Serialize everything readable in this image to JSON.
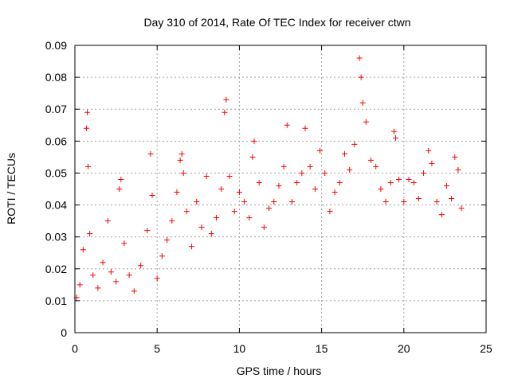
{
  "chart_data": {
    "type": "scatter",
    "title": "Day 310 of 2014, Rate Of TEC Index for receiver ctwn",
    "xlabel": "GPS time / hours",
    "ylabel": "ROTI / TECUs",
    "xlim": [
      0,
      25
    ],
    "ylim": [
      0,
      0.09
    ],
    "x_ticks": [
      "0",
      "5",
      "10",
      "15",
      "20",
      "25"
    ],
    "y_ticks": [
      "0",
      "0.01",
      "0.02",
      "0.03",
      "0.04",
      "0.05",
      "0.06",
      "0.07",
      "0.08",
      "0.09"
    ],
    "grid": true,
    "marker": "+",
    "color": "#ff0000",
    "series": [
      {
        "x": [
          0.1,
          0.3,
          0.5,
          0.7,
          0.75,
          0.8,
          0.9,
          1.1,
          1.4,
          1.7,
          2.0,
          2.2,
          2.5,
          2.7,
          2.8,
          3.0,
          3.3,
          3.6,
          4.0,
          4.4,
          4.6,
          4.7,
          5.0,
          5.3,
          5.6,
          5.9,
          6.2,
          6.4,
          6.5,
          6.6,
          6.8,
          7.1,
          7.4,
          7.7,
          8.0,
          8.3,
          8.6,
          8.9,
          9.1,
          9.2,
          9.4,
          9.7,
          10.0,
          10.3,
          10.6,
          10.8,
          10.9,
          11.2,
          11.5,
          11.8,
          12.1,
          12.4,
          12.7,
          12.9,
          13.2,
          13.5,
          13.8,
          14.0,
          14.3,
          14.6,
          14.9,
          15.2,
          15.5,
          15.8,
          16.1,
          16.4,
          16.7,
          17.0,
          17.3,
          17.4,
          17.5,
          17.7,
          18.0,
          18.3,
          18.6,
          18.9,
          19.2,
          19.4,
          19.5,
          19.7,
          20.0,
          20.3,
          20.6,
          20.9,
          21.2,
          21.5,
          21.7,
          22.0,
          22.3,
          22.6,
          22.9,
          23.1,
          23.3,
          23.5
        ],
        "y": [
          0.011,
          0.015,
          0.026,
          0.064,
          0.069,
          0.052,
          0.031,
          0.018,
          0.014,
          0.022,
          0.035,
          0.019,
          0.016,
          0.045,
          0.048,
          0.028,
          0.018,
          0.013,
          0.021,
          0.032,
          0.056,
          0.043,
          0.017,
          0.024,
          0.029,
          0.035,
          0.044,
          0.054,
          0.056,
          0.05,
          0.038,
          0.027,
          0.041,
          0.033,
          0.049,
          0.031,
          0.036,
          0.045,
          0.069,
          0.073,
          0.049,
          0.038,
          0.044,
          0.041,
          0.036,
          0.055,
          0.06,
          0.047,
          0.033,
          0.039,
          0.041,
          0.046,
          0.052,
          0.065,
          0.041,
          0.047,
          0.05,
          0.064,
          0.052,
          0.045,
          0.057,
          0.05,
          0.038,
          0.044,
          0.047,
          0.056,
          0.051,
          0.059,
          0.086,
          0.08,
          0.072,
          0.066,
          0.054,
          0.052,
          0.045,
          0.041,
          0.047,
          0.063,
          0.061,
          0.048,
          0.041,
          0.048,
          0.047,
          0.042,
          0.05,
          0.057,
          0.053,
          0.041,
          0.037,
          0.046,
          0.042,
          0.055,
          0.051,
          0.039
        ]
      }
    ]
  }
}
